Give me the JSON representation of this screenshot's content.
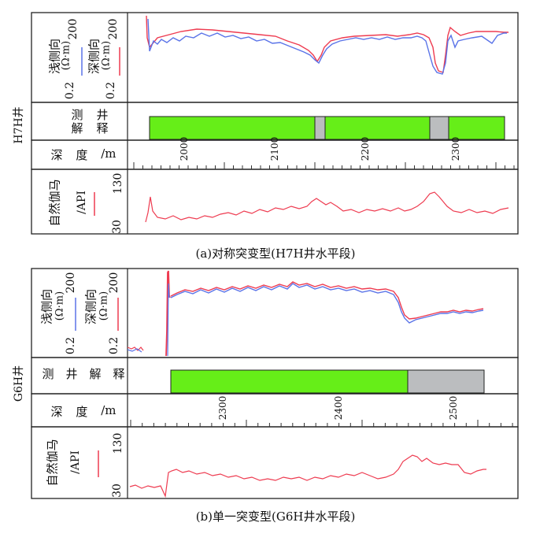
{
  "panels": [
    {
      "well_label": "H7H井",
      "res_label_shallow": "浅侧向",
      "res_label_deep": "深侧向",
      "res_unit": "(Ω·m)",
      "res_max": "200",
      "res_min": "0.2",
      "interp_label": [
        "测",
        "井",
        "解",
        "释"
      ],
      "depth_label": [
        "深",
        "度",
        "/m"
      ],
      "gamma_label": "自然伽马",
      "gamma_unit": "/API",
      "gamma_max": "130",
      "gamma_min": "30",
      "depth_ticks": [
        "2000",
        "2100",
        "2200",
        "2300"
      ],
      "caption": "(a)对称突变型(H7H井水平段)"
    },
    {
      "well_label": "G6H井",
      "res_label_shallow": "浅侧向",
      "res_label_deep": "深侧向",
      "res_unit": "(Ω·m)",
      "res_max": "200",
      "res_min": "0.2",
      "interp_label": [
        "测",
        "井",
        "解",
        "释"
      ],
      "depth_label": [
        "深",
        "度",
        "/m"
      ],
      "gamma_label": "自然伽马",
      "gamma_unit": "/API",
      "gamma_max": "130",
      "gamma_min": "30",
      "depth_ticks": [
        "2300",
        "2400",
        "2500"
      ],
      "caption": "(b)单一突变型(G6H井水平段)"
    }
  ],
  "colors": {
    "shallow": "#5a73e8",
    "deep": "#ee3b50",
    "gamma": "#ee3b50",
    "interp_green": "#66ee18",
    "interp_gray": "#bbbdbf"
  }
}
